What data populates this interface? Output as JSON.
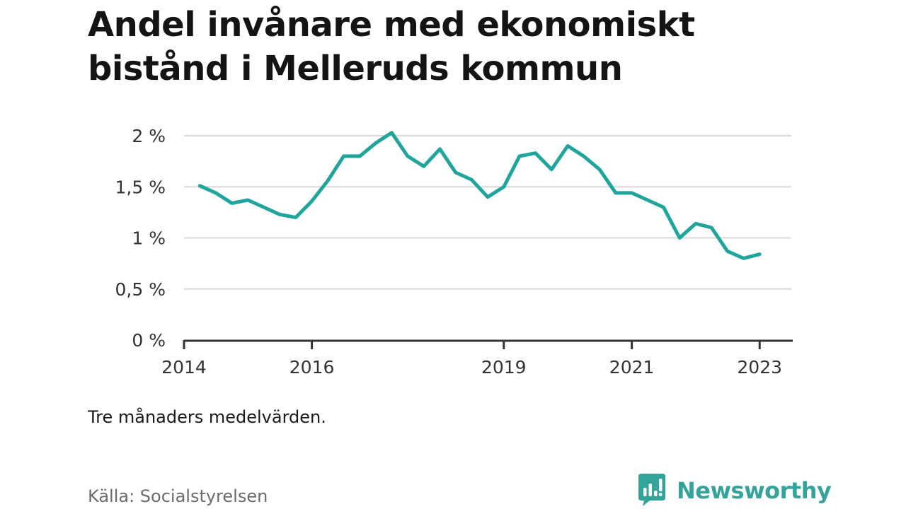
{
  "title": "Andel invånare med ekonomiskt bistånd i Melleruds kommun",
  "note": "Tre månaders medelvärden.",
  "source": "Källa: Socialstyrelsen",
  "brand": {
    "name": "Newsworthy",
    "icon": "newsworthy-logo-icon",
    "color": "#34a39a"
  },
  "chart_data": {
    "type": "line",
    "title": "Andel invånare med ekonomiskt bistånd i Melleruds kommun",
    "xlabel": "",
    "ylabel": "",
    "ylim": [
      0,
      2
    ],
    "xlim": [
      "2014-01-01",
      "2023-07-01"
    ],
    "grid": true,
    "y_ticks": [
      {
        "value": 0,
        "label": "0 %"
      },
      {
        "value": 0.5,
        "label": "0,5 %"
      },
      {
        "value": 1,
        "label": "1 %"
      },
      {
        "value": 1.5,
        "label": "1,5 %"
      },
      {
        "value": 2,
        "label": "2 %"
      }
    ],
    "x_ticks": [
      {
        "value": "2014-01-01",
        "label": "2014"
      },
      {
        "value": "2016-01-01",
        "label": "2016"
      },
      {
        "value": "2019-01-01",
        "label": "2019"
      },
      {
        "value": "2021-01-01",
        "label": "2021"
      },
      {
        "value": "2023-01-01",
        "label": "2023"
      }
    ],
    "series": [
      {
        "color": "#1fa59b",
        "points": [
          [
            "2014-04-01",
            1.51
          ],
          [
            "2014-07-01",
            1.44
          ],
          [
            "2014-10-01",
            1.34
          ],
          [
            "2015-01-01",
            1.37
          ],
          [
            "2015-04-01",
            1.3
          ],
          [
            "2015-07-01",
            1.23
          ],
          [
            "2015-10-01",
            1.2
          ],
          [
            "2016-01-01",
            1.36
          ],
          [
            "2016-04-01",
            1.56
          ],
          [
            "2016-07-01",
            1.8
          ],
          [
            "2016-10-01",
            1.8
          ],
          [
            "2017-01-01",
            1.93
          ],
          [
            "2017-04-01",
            2.03
          ],
          [
            "2017-07-01",
            1.8
          ],
          [
            "2017-10-01",
            1.7
          ],
          [
            "2018-01-01",
            1.87
          ],
          [
            "2018-04-01",
            1.64
          ],
          [
            "2018-07-01",
            1.57
          ],
          [
            "2018-10-01",
            1.4
          ],
          [
            "2019-01-01",
            1.5
          ],
          [
            "2019-04-01",
            1.8
          ],
          [
            "2019-07-01",
            1.83
          ],
          [
            "2019-10-01",
            1.67
          ],
          [
            "2020-01-01",
            1.9
          ],
          [
            "2020-04-01",
            1.8
          ],
          [
            "2020-07-01",
            1.67
          ],
          [
            "2020-10-01",
            1.44
          ],
          [
            "2021-01-01",
            1.44
          ],
          [
            "2021-04-01",
            1.37
          ],
          [
            "2021-07-01",
            1.3
          ],
          [
            "2021-10-01",
            1.0
          ],
          [
            "2022-01-01",
            1.14
          ],
          [
            "2022-04-01",
            1.1
          ],
          [
            "2022-07-01",
            0.87
          ],
          [
            "2022-10-01",
            0.8
          ],
          [
            "2023-01-01",
            0.84
          ]
        ]
      }
    ]
  }
}
